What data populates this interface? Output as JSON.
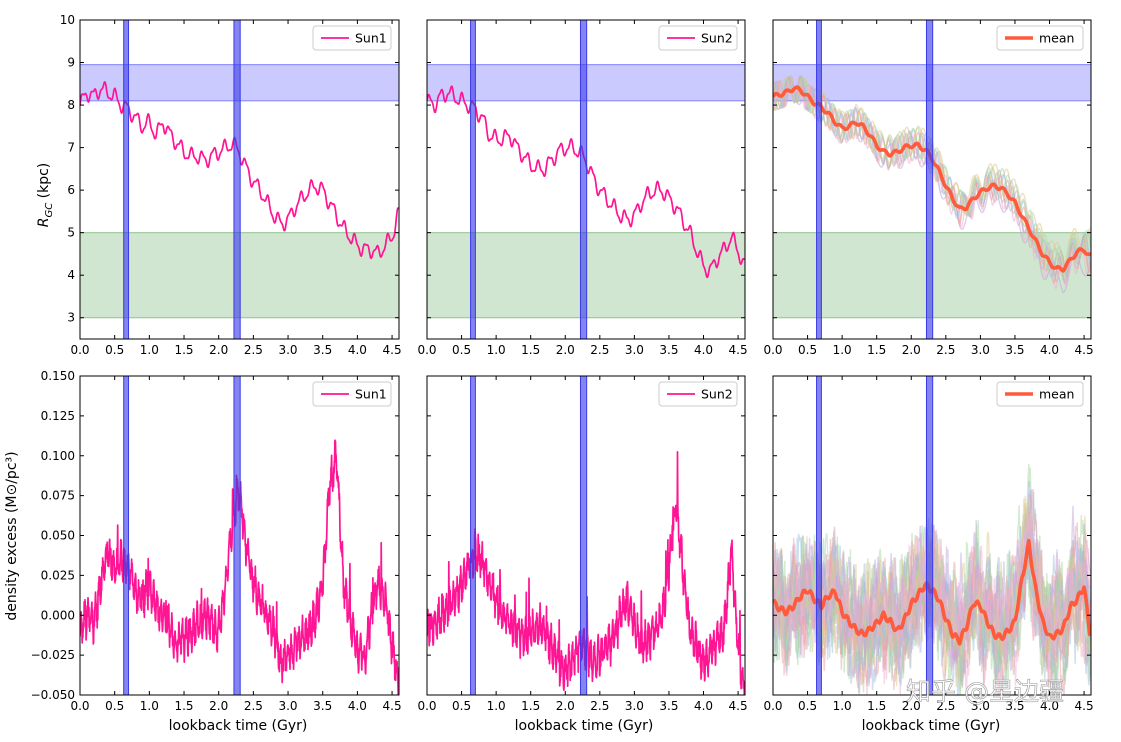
{
  "colors": {
    "sun": "#ff1493",
    "mean": "#ff5a3c",
    "vband": "#3a3ae8",
    "hband_blue": "#8080ff",
    "hband_green": "#8fc48f",
    "ensemble": [
      "#e8a0a0",
      "#9fbfe0",
      "#a8d8a0",
      "#e0c890",
      "#c0a8e0",
      "#f0b0d0"
    ]
  },
  "labels": {
    "ylabel_top": "R_GC (kpc)",
    "ylabel_bottom": "density excess (M⊙/pc³)",
    "xlabel": "lookback time (Gyr)",
    "watermark": "知乎 @星边疆"
  },
  "chart_data": [
    {
      "type": "line",
      "panel": "top-left",
      "legend": "upper right",
      "xlim": [
        0,
        4.6
      ],
      "ylim": [
        2.5,
        10
      ],
      "xticks": [
        "0.0",
        "0.5",
        "1.0",
        "1.5",
        "2.0",
        "2.5",
        "3.0",
        "3.5",
        "4.0",
        "4.5"
      ],
      "yticks": [
        "3",
        "4",
        "5",
        "6",
        "7",
        "8",
        "9",
        "10"
      ],
      "vertical_bands": [
        [
          0.63,
          0.7
        ],
        [
          2.22,
          2.31
        ]
      ],
      "horizontal_bands": [
        {
          "range": [
            8.1,
            8.95
          ],
          "color": "blue"
        },
        {
          "range": [
            3.0,
            5.0
          ],
          "color": "green"
        }
      ],
      "series": [
        {
          "name": "Sun1",
          "x": [
            0.0,
            0.1,
            0.2,
            0.3,
            0.4,
            0.5,
            0.6,
            0.7,
            0.8,
            0.9,
            1.0,
            1.1,
            1.2,
            1.3,
            1.4,
            1.5,
            1.6,
            1.7,
            1.8,
            1.9,
            2.0,
            2.1,
            2.2,
            2.3,
            2.4,
            2.5,
            2.6,
            2.7,
            2.8,
            2.9,
            3.0,
            3.1,
            3.2,
            3.3,
            3.4,
            3.5,
            3.6,
            3.7,
            3.8,
            3.9,
            4.0,
            4.1,
            4.2,
            4.3,
            4.4,
            4.5,
            4.58
          ],
          "y": [
            8.0,
            8.3,
            8.2,
            8.4,
            8.3,
            8.2,
            8.0,
            7.9,
            7.7,
            7.5,
            7.6,
            7.3,
            7.6,
            7.3,
            7.1,
            6.9,
            6.8,
            6.8,
            6.7,
            6.8,
            6.9,
            7.0,
            7.1,
            6.9,
            6.5,
            6.2,
            6.0,
            5.7,
            5.4,
            5.2,
            5.3,
            5.6,
            5.8,
            6.0,
            6.1,
            6.0,
            5.7,
            5.4,
            5.1,
            4.9,
            4.7,
            4.6,
            4.6,
            4.5,
            4.7,
            4.9,
            5.4
          ]
        }
      ]
    },
    {
      "type": "line",
      "panel": "top-middle",
      "legend": "upper right",
      "xlim": [
        0,
        4.6
      ],
      "ylim": [
        2.5,
        10
      ],
      "xticks": [
        "0.0",
        "0.5",
        "1.0",
        "1.5",
        "2.0",
        "2.5",
        "3.0",
        "3.5",
        "4.0",
        "4.5"
      ],
      "yticks": [],
      "vertical_bands": [
        [
          0.63,
          0.7
        ],
        [
          2.22,
          2.31
        ]
      ],
      "horizontal_bands": [
        {
          "range": [
            8.1,
            8.95
          ],
          "color": "blue"
        },
        {
          "range": [
            3.0,
            5.0
          ],
          "color": "green"
        }
      ],
      "series": [
        {
          "name": "Sun2",
          "x": [
            0.0,
            0.1,
            0.2,
            0.3,
            0.4,
            0.5,
            0.6,
            0.7,
            0.8,
            0.9,
            1.0,
            1.1,
            1.2,
            1.3,
            1.4,
            1.5,
            1.6,
            1.7,
            1.8,
            1.9,
            2.0,
            2.1,
            2.2,
            2.3,
            2.4,
            2.5,
            2.6,
            2.7,
            2.8,
            2.9,
            3.0,
            3.1,
            3.2,
            3.3,
            3.4,
            3.5,
            3.6,
            3.7,
            3.8,
            3.9,
            4.0,
            4.1,
            4.2,
            4.3,
            4.4,
            4.5,
            4.58
          ],
          "y": [
            8.1,
            8.0,
            8.2,
            8.3,
            8.2,
            8.1,
            8.0,
            7.9,
            7.7,
            7.3,
            7.2,
            7.2,
            7.3,
            7.0,
            6.8,
            6.6,
            6.5,
            6.5,
            6.7,
            6.9,
            7.0,
            7.0,
            6.9,
            6.7,
            6.3,
            6.0,
            5.8,
            5.6,
            5.4,
            5.3,
            5.4,
            5.7,
            5.9,
            6.0,
            6.0,
            5.8,
            5.6,
            5.3,
            5.0,
            4.6,
            4.2,
            4.1,
            4.4,
            4.6,
            4.9,
            4.6,
            4.2
          ]
        }
      ]
    },
    {
      "type": "line",
      "panel": "top-right",
      "legend": "upper right",
      "xlim": [
        0,
        4.6
      ],
      "ylim": [
        2.5,
        10
      ],
      "xticks": [
        "0.0",
        "0.5",
        "1.0",
        "1.5",
        "2.0",
        "2.5",
        "3.0",
        "3.5",
        "4.0",
        "4.5"
      ],
      "yticks": [],
      "vertical_bands": [
        [
          0.63,
          0.7
        ],
        [
          2.22,
          2.31
        ]
      ],
      "horizontal_bands": [
        {
          "range": [
            8.1,
            8.95
          ],
          "color": "blue"
        },
        {
          "range": [
            3.0,
            5.0
          ],
          "color": "green"
        }
      ],
      "series": [
        {
          "name": "mean",
          "x": [
            0.0,
            0.1,
            0.2,
            0.3,
            0.4,
            0.5,
            0.6,
            0.7,
            0.8,
            0.9,
            1.0,
            1.1,
            1.2,
            1.3,
            1.4,
            1.5,
            1.6,
            1.7,
            1.8,
            1.9,
            2.0,
            2.1,
            2.2,
            2.3,
            2.4,
            2.5,
            2.6,
            2.7,
            2.8,
            2.9,
            3.0,
            3.1,
            3.2,
            3.3,
            3.4,
            3.5,
            3.6,
            3.7,
            3.8,
            3.9,
            4.0,
            4.1,
            4.2,
            4.3,
            4.4,
            4.5,
            4.58
          ],
          "y": [
            8.2,
            8.25,
            8.3,
            8.4,
            8.35,
            8.2,
            8.05,
            7.95,
            7.8,
            7.6,
            7.45,
            7.5,
            7.6,
            7.5,
            7.3,
            7.05,
            6.9,
            6.85,
            6.9,
            7.0,
            7.05,
            7.05,
            6.95,
            6.75,
            6.45,
            6.1,
            5.8,
            5.55,
            5.6,
            5.8,
            5.95,
            6.05,
            6.1,
            6.05,
            5.9,
            5.7,
            5.4,
            5.1,
            4.8,
            4.5,
            4.3,
            4.15,
            4.15,
            4.35,
            4.55,
            4.6,
            4.45
          ]
        }
      ]
    },
    {
      "type": "line",
      "panel": "bottom-left",
      "legend": "upper right",
      "xlim": [
        0,
        4.6
      ],
      "ylim": [
        -0.05,
        0.15
      ],
      "xticks": [
        "0.0",
        "0.5",
        "1.0",
        "1.5",
        "2.0",
        "2.5",
        "3.0",
        "3.5",
        "4.0",
        "4.5"
      ],
      "yticks": [
        "−0.050",
        "−0.025",
        "0.000",
        "0.025",
        "0.050",
        "0.075",
        "0.100",
        "0.125",
        "0.150"
      ],
      "vertical_bands": [
        [
          0.63,
          0.7
        ],
        [
          2.22,
          2.31
        ]
      ],
      "series": [
        {
          "name": "Sun1",
          "x": [
            0.0,
            0.1,
            0.2,
            0.3,
            0.4,
            0.5,
            0.6,
            0.7,
            0.8,
            0.9,
            1.0,
            1.1,
            1.2,
            1.3,
            1.4,
            1.5,
            1.6,
            1.7,
            1.8,
            1.9,
            2.0,
            2.1,
            2.2,
            2.3,
            2.4,
            2.5,
            2.6,
            2.7,
            2.8,
            2.9,
            3.0,
            3.1,
            3.2,
            3.3,
            3.4,
            3.5,
            3.6,
            3.7,
            3.8,
            3.9,
            4.0,
            4.1,
            4.2,
            4.3,
            4.4,
            4.5,
            4.58
          ],
          "y": [
            -0.01,
            0.0,
            -0.005,
            0.02,
            0.04,
            0.03,
            0.035,
            0.03,
            0.015,
            0.01,
            0.02,
            0.005,
            0.0,
            -0.01,
            -0.02,
            -0.015,
            -0.01,
            -0.005,
            0.0,
            -0.005,
            -0.01,
            0.02,
            0.06,
            0.08,
            0.04,
            0.02,
            0.01,
            0.0,
            -0.01,
            -0.03,
            -0.025,
            -0.02,
            -0.015,
            -0.01,
            0.0,
            0.02,
            0.08,
            0.1,
            0.02,
            -0.005,
            -0.02,
            -0.03,
            0.0,
            0.02,
            0.01,
            -0.02,
            -0.04
          ]
        }
      ]
    },
    {
      "type": "line",
      "panel": "bottom-middle",
      "legend": "upper right",
      "xlim": [
        0,
        4.6
      ],
      "ylim": [
        -0.05,
        0.15
      ],
      "xticks": [
        "0.0",
        "0.5",
        "1.0",
        "1.5",
        "2.0",
        "2.5",
        "3.0",
        "3.5",
        "4.0",
        "4.5"
      ],
      "yticks": [],
      "vertical_bands": [
        [
          0.63,
          0.7
        ],
        [
          2.22,
          2.31
        ]
      ],
      "series": [
        {
          "name": "Sun2",
          "x": [
            0.0,
            0.1,
            0.2,
            0.3,
            0.4,
            0.5,
            0.6,
            0.7,
            0.8,
            0.9,
            1.0,
            1.1,
            1.2,
            1.3,
            1.4,
            1.5,
            1.6,
            1.7,
            1.8,
            1.9,
            2.0,
            2.1,
            2.2,
            2.3,
            2.4,
            2.5,
            2.6,
            2.7,
            2.8,
            2.9,
            3.0,
            3.1,
            3.2,
            3.3,
            3.4,
            3.5,
            3.6,
            3.7,
            3.8,
            3.9,
            4.0,
            4.1,
            4.2,
            4.3,
            4.4,
            4.5,
            4.58
          ],
          "y": [
            -0.01,
            -0.005,
            0.0,
            0.005,
            0.01,
            0.02,
            0.03,
            0.04,
            0.035,
            0.02,
            0.01,
            0.0,
            -0.005,
            -0.01,
            -0.015,
            -0.01,
            -0.005,
            -0.01,
            -0.02,
            -0.03,
            -0.035,
            -0.03,
            -0.02,
            -0.02,
            -0.03,
            -0.025,
            -0.02,
            -0.015,
            0.0,
            0.01,
            -0.005,
            -0.02,
            -0.015,
            -0.01,
            0.0,
            0.03,
            0.07,
            0.03,
            -0.01,
            -0.02,
            -0.03,
            -0.025,
            -0.015,
            -0.01,
            0.04,
            -0.02,
            -0.045
          ]
        }
      ]
    },
    {
      "type": "line",
      "panel": "bottom-right",
      "legend": "upper right",
      "xlim": [
        0,
        4.6
      ],
      "ylim": [
        -0.05,
        0.15
      ],
      "xticks": [
        "0.0",
        "0.5",
        "1.0",
        "1.5",
        "2.0",
        "2.5",
        "3.0",
        "3.5",
        "4.0",
        "4.5"
      ],
      "yticks": [],
      "vertical_bands": [
        [
          0.63,
          0.7
        ],
        [
          2.22,
          2.31
        ]
      ],
      "series": [
        {
          "name": "mean",
          "x": [
            0.0,
            0.1,
            0.2,
            0.3,
            0.4,
            0.5,
            0.6,
            0.7,
            0.8,
            0.9,
            1.0,
            1.1,
            1.2,
            1.3,
            1.4,
            1.5,
            1.6,
            1.7,
            1.8,
            1.9,
            2.0,
            2.1,
            2.2,
            2.3,
            2.4,
            2.5,
            2.6,
            2.7,
            2.8,
            2.9,
            3.0,
            3.1,
            3.2,
            3.3,
            3.4,
            3.5,
            3.6,
            3.7,
            3.8,
            3.9,
            4.0,
            4.1,
            4.2,
            4.3,
            4.4,
            4.5,
            4.58
          ],
          "y": [
            0.008,
            0.004,
            0.002,
            0.006,
            0.012,
            0.016,
            0.01,
            0.006,
            0.012,
            0.015,
            0.002,
            -0.004,
            -0.009,
            -0.012,
            -0.009,
            -0.005,
            0.0,
            -0.004,
            -0.01,
            -0.003,
            0.007,
            0.013,
            0.019,
            0.016,
            0.01,
            -0.002,
            -0.012,
            -0.016,
            -0.007,
            0.008,
            0.006,
            -0.004,
            -0.012,
            -0.014,
            -0.01,
            -0.004,
            0.022,
            0.045,
            0.016,
            -0.004,
            -0.014,
            -0.012,
            -0.008,
            0.005,
            0.01,
            0.018,
            -0.01
          ]
        }
      ]
    }
  ]
}
